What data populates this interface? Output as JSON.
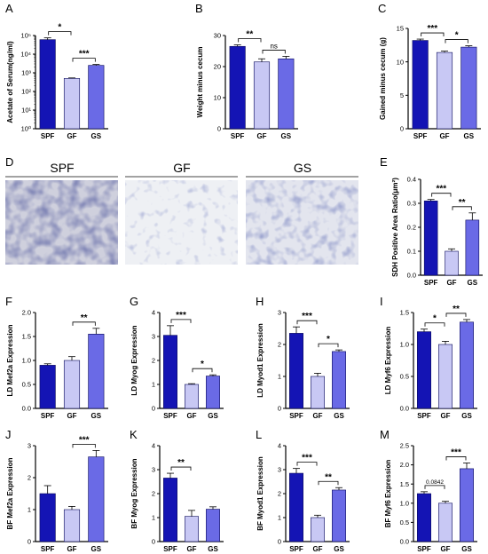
{
  "colors": {
    "SPF": "#1414b4",
    "GF": "#c8c8f4",
    "GS": "#6a6ae6",
    "stroke": "#0a0a5a",
    "axis": "#000000",
    "mic_dark": "#2a2f6a",
    "mic_light": "#eef0f4"
  },
  "panel_letters": [
    "A",
    "B",
    "C",
    "D",
    "E",
    "F",
    "G",
    "H",
    "I",
    "J",
    "K",
    "L",
    "M"
  ],
  "micrographs": {
    "letter": "D",
    "groups": [
      "SPF",
      "GF",
      "GS"
    ]
  },
  "chart_data": [
    {
      "id": "A",
      "type": "bar",
      "ylabel": "Acetate of Serum(ng/ml)",
      "yscale": "log",
      "ylim": [
        1,
        100000
      ],
      "yticks": [
        1,
        10,
        100,
        1000,
        10000,
        100000
      ],
      "ytick_labels": [
        "10⁰",
        "10¹",
        "10²",
        "10³",
        "10⁴",
        "10⁵"
      ],
      "categories": [
        "SPF",
        "GF",
        "GS"
      ],
      "values": [
        60000,
        500,
        2500
      ],
      "errors": [
        15000,
        30,
        300
      ],
      "sig": [
        {
          "from": 0,
          "to": 1,
          "label": "*"
        },
        {
          "from": 1,
          "to": 2,
          "label": "***"
        }
      ]
    },
    {
      "id": "B",
      "type": "bar",
      "ylabel": "Weight minus cecum",
      "yscale": "linear",
      "ylim": [
        0,
        30
      ],
      "yticks": [
        0,
        10,
        20,
        30
      ],
      "categories": [
        "SPF",
        "GF",
        "GS"
      ],
      "values": [
        26.5,
        21.5,
        22.5
      ],
      "errors": [
        0.5,
        1.0,
        0.8
      ],
      "sig": [
        {
          "from": 0,
          "to": 1,
          "label": "**"
        },
        {
          "from": 1,
          "to": 2,
          "label": "ns"
        }
      ]
    },
    {
      "id": "C",
      "type": "bar",
      "ylabel": "Gained  minus cecum (g)",
      "yscale": "linear",
      "ylim": [
        0,
        15
      ],
      "yticks": [
        0,
        5,
        10,
        15
      ],
      "categories": [
        "SPF",
        "GF",
        "GS"
      ],
      "values": [
        13.2,
        11.4,
        12.2
      ],
      "errors": [
        0.2,
        0.2,
        0.2
      ],
      "sig": [
        {
          "from": 0,
          "to": 1,
          "label": "***"
        },
        {
          "from": 1,
          "to": 2,
          "label": "*"
        }
      ]
    },
    {
      "id": "E",
      "type": "bar",
      "ylabel": "SDH Positive Area Ratio(μm²)",
      "yscale": "linear",
      "ylim": [
        0,
        0.4
      ],
      "yticks": [
        0,
        0.1,
        0.2,
        0.3,
        0.4
      ],
      "ytick_labels": [
        "0.0",
        "0.1",
        "0.2",
        "0.3",
        "0.4"
      ],
      "categories": [
        "SPF",
        "GF",
        "GS"
      ],
      "values": [
        0.31,
        0.1,
        0.23
      ],
      "errors": [
        0.006,
        0.01,
        0.03
      ],
      "sig": [
        {
          "from": 0,
          "to": 1,
          "label": "***"
        },
        {
          "from": 1,
          "to": 2,
          "label": "**"
        }
      ]
    },
    {
      "id": "F",
      "type": "bar",
      "ylabel": "LD Mef2a Expression",
      "yscale": "linear",
      "ylim": [
        0,
        2.0
      ],
      "yticks": [
        0,
        0.5,
        1.0,
        1.5,
        2.0
      ],
      "ytick_labels": [
        "0.0",
        "0.5",
        "1.0",
        "1.5",
        "2.0"
      ],
      "categories": [
        "SPF",
        "GF",
        "GS"
      ],
      "values": [
        0.9,
        1.0,
        1.55
      ],
      "errors": [
        0.03,
        0.08,
        0.12
      ],
      "sig": [
        {
          "from": 1,
          "to": 2,
          "label": "**"
        }
      ]
    },
    {
      "id": "G",
      "type": "bar",
      "ylabel": "LD Myog Expression",
      "yscale": "linear",
      "ylim": [
        0,
        4
      ],
      "yticks": [
        0,
        1,
        2,
        3,
        4
      ],
      "categories": [
        "SPF",
        "GF",
        "GS"
      ],
      "values": [
        3.05,
        1.0,
        1.35
      ],
      "errors": [
        0.4,
        0.03,
        0.05
      ],
      "sig": [
        {
          "from": 0,
          "to": 1,
          "label": "***"
        },
        {
          "from": 1,
          "to": 2,
          "label": "*"
        }
      ]
    },
    {
      "id": "H",
      "type": "bar",
      "ylabel": "LD Myod1 Expression",
      "yscale": "linear",
      "ylim": [
        0,
        3
      ],
      "yticks": [
        0,
        1,
        2,
        3
      ],
      "categories": [
        "SPF",
        "GF",
        "GS"
      ],
      "values": [
        2.35,
        1.0,
        1.78
      ],
      "errors": [
        0.2,
        0.1,
        0.05
      ],
      "sig": [
        {
          "from": 0,
          "to": 1,
          "label": "***"
        },
        {
          "from": 1,
          "to": 2,
          "label": "*"
        }
      ]
    },
    {
      "id": "I",
      "type": "bar",
      "ylabel": "LD Myf6 Expression",
      "yscale": "linear",
      "ylim": [
        0,
        1.5
      ],
      "yticks": [
        0,
        0.5,
        1.0,
        1.5
      ],
      "ytick_labels": [
        "0.0",
        "0.5",
        "1.0",
        "1.5"
      ],
      "categories": [
        "SPF",
        "GF",
        "GS"
      ],
      "values": [
        1.2,
        1.0,
        1.35
      ],
      "errors": [
        0.04,
        0.05,
        0.04
      ],
      "sig": [
        {
          "from": 0,
          "to": 1,
          "label": "*"
        },
        {
          "from": 1,
          "to": 2,
          "label": "**"
        }
      ]
    },
    {
      "id": "J",
      "type": "bar",
      "ylabel": "BF Mef2a Expression",
      "yscale": "linear",
      "ylim": [
        0,
        3
      ],
      "yticks": [
        0,
        1,
        2,
        3
      ],
      "categories": [
        "SPF",
        "GF",
        "GS"
      ],
      "values": [
        1.5,
        1.0,
        2.65
      ],
      "errors": [
        0.25,
        0.1,
        0.2
      ],
      "sig": [
        {
          "from": 1,
          "to": 2,
          "label": "***"
        }
      ]
    },
    {
      "id": "K",
      "type": "bar",
      "ylabel": "BF Myog Expression",
      "yscale": "linear",
      "ylim": [
        0,
        4
      ],
      "yticks": [
        0,
        1,
        2,
        3,
        4
      ],
      "categories": [
        "SPF",
        "GF",
        "GS"
      ],
      "values": [
        2.65,
        1.05,
        1.35
      ],
      "errors": [
        0.2,
        0.25,
        0.1
      ],
      "sig": [
        {
          "from": 0,
          "to": 1,
          "label": "**"
        }
      ]
    },
    {
      "id": "L",
      "type": "bar",
      "ylabel": "BF Myod1 Expression",
      "yscale": "linear",
      "ylim": [
        0,
        4
      ],
      "yticks": [
        0,
        1,
        2,
        3,
        4
      ],
      "categories": [
        "SPF",
        "GF",
        "GS"
      ],
      "values": [
        2.85,
        1.0,
        2.15
      ],
      "errors": [
        0.2,
        0.1,
        0.1
      ],
      "sig": [
        {
          "from": 0,
          "to": 1,
          "label": "***"
        },
        {
          "from": 1,
          "to": 2,
          "label": "**"
        }
      ]
    },
    {
      "id": "M",
      "type": "bar",
      "ylabel": "BF Myf6 Expression",
      "yscale": "linear",
      "ylim": [
        0,
        2.5
      ],
      "yticks": [
        0,
        0.5,
        1.0,
        1.5,
        2.0,
        2.5
      ],
      "ytick_labels": [
        "0.0",
        "0.5",
        "1.0",
        "1.5",
        "2.0",
        "2.5"
      ],
      "categories": [
        "SPF",
        "GF",
        "GS"
      ],
      "values": [
        1.25,
        1.0,
        1.9
      ],
      "errors": [
        0.05,
        0.05,
        0.15
      ],
      "sig": [
        {
          "from": 0,
          "to": 1,
          "label": "0.0842"
        },
        {
          "from": 1,
          "to": 2,
          "label": "***"
        }
      ]
    }
  ]
}
